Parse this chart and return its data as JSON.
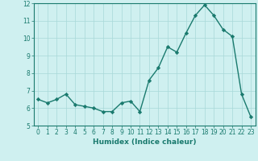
{
  "x": [
    0,
    1,
    2,
    3,
    4,
    5,
    6,
    7,
    8,
    9,
    10,
    11,
    12,
    13,
    14,
    15,
    16,
    17,
    18,
    19,
    20,
    21,
    22,
    23
  ],
  "y": [
    6.5,
    6.3,
    6.5,
    6.8,
    6.2,
    6.1,
    6.0,
    5.8,
    5.8,
    6.3,
    6.4,
    5.8,
    7.6,
    8.3,
    9.5,
    9.2,
    10.3,
    11.3,
    11.9,
    11.3,
    10.5,
    10.1,
    6.8,
    5.5
  ],
  "xlim": [
    -0.5,
    23.5
  ],
  "ylim": [
    5,
    12
  ],
  "yticks": [
    5,
    6,
    7,
    8,
    9,
    10,
    11,
    12
  ],
  "xticks": [
    0,
    1,
    2,
    3,
    4,
    5,
    6,
    7,
    8,
    9,
    10,
    11,
    12,
    13,
    14,
    15,
    16,
    17,
    18,
    19,
    20,
    21,
    22,
    23
  ],
  "xlabel": "Humidex (Indice chaleur)",
  "line_color": "#1a7a6e",
  "bg_color": "#cff0f0",
  "grid_color": "#a8d8d8",
  "marker": "D",
  "marker_size": 2.2,
  "linewidth": 1.0,
  "tick_fontsize": 5.5,
  "xlabel_fontsize": 6.5
}
